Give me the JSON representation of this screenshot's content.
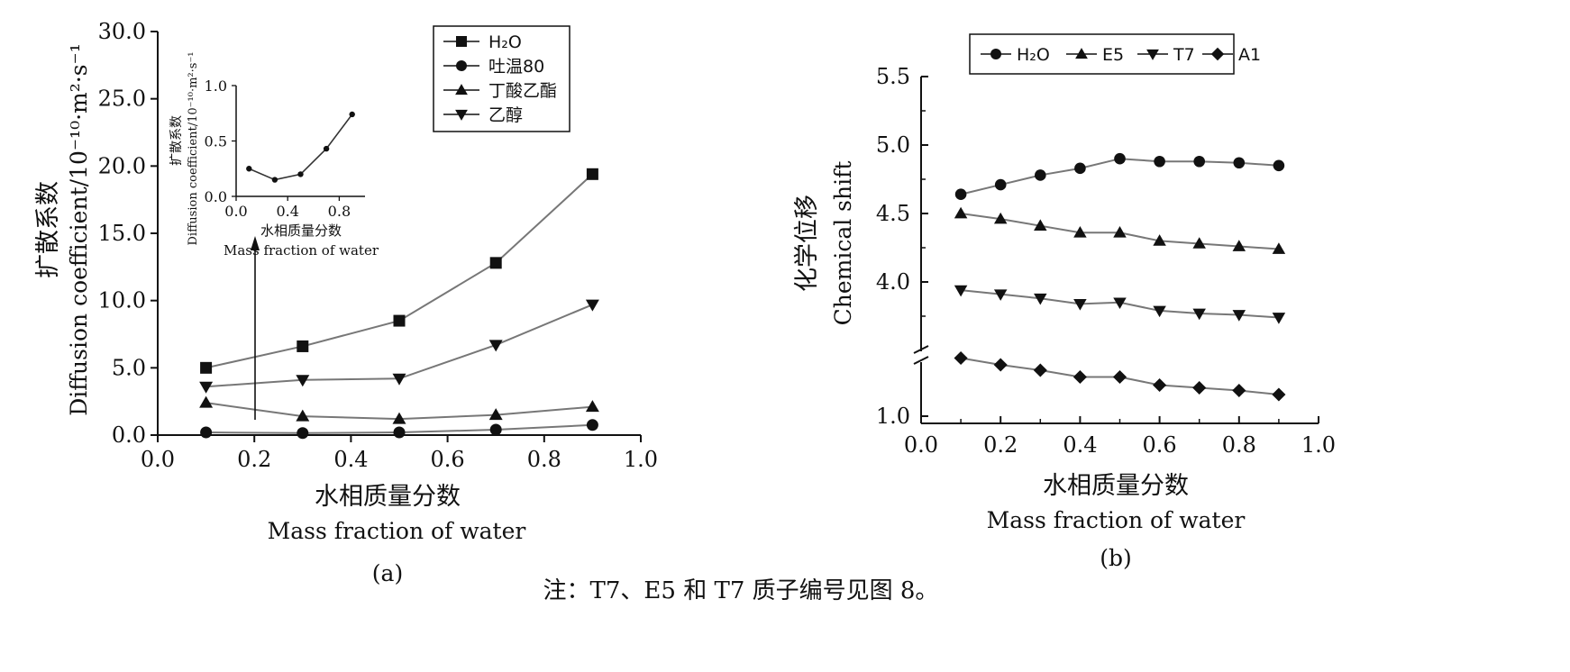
{
  "chart_data": [
    {
      "panel": "(a)",
      "type": "line",
      "xlabel_cn": "水相质量分数",
      "xlabel_en": "Mass fraction of water",
      "ylabel_cn": "扩散系数",
      "ylabel_en": "Diffusion coefficient/10⁻¹⁰·m²·s⁻¹",
      "xlim": [
        0,
        1.0
      ],
      "ylim": [
        0,
        30
      ],
      "xticks": [
        "0.0",
        "0.2",
        "0.4",
        "0.6",
        "0.8",
        "1.0"
      ],
      "yticks": [
        "0.0",
        "5.0",
        "10.0",
        "15.0",
        "20.0",
        "25.0",
        "30.0"
      ],
      "x": [
        0.1,
        0.3,
        0.5,
        0.7,
        0.9
      ],
      "series": [
        {
          "name": "H₂O",
          "marker": "square",
          "values": [
            5.0,
            6.6,
            8.5,
            12.8,
            19.4
          ]
        },
        {
          "name": "吐温80",
          "marker": "circle",
          "values": [
            0.2,
            0.15,
            0.2,
            0.4,
            0.75
          ]
        },
        {
          "name": "丁酸乙酯",
          "marker": "triangle-up",
          "values": [
            2.4,
            1.4,
            1.2,
            1.5,
            2.1
          ]
        },
        {
          "name": "乙醇",
          "marker": "triangle-down",
          "values": [
            3.6,
            4.1,
            4.2,
            6.7,
            9.7
          ]
        }
      ],
      "inset": {
        "xlabel_cn": "水相质量分数",
        "xlabel_en": "Mass fraction of water",
        "ylabel_cn": "扩散系数",
        "ylabel_en": "Diffusion coefficient/10⁻¹⁰·m²·s⁻¹",
        "xlim": [
          0,
          1.0
        ],
        "ylim": [
          0,
          1.0
        ],
        "xticks": [
          "0.0",
          "0.4",
          "0.8"
        ],
        "yticks": [
          "0.0",
          "0.5",
          "1.0"
        ],
        "x": [
          0.1,
          0.3,
          0.5,
          0.7,
          0.9
        ],
        "values": [
          0.25,
          0.15,
          0.2,
          0.43,
          0.74
        ]
      }
    },
    {
      "panel": "(b)",
      "type": "line",
      "xlabel_cn": "水相质量分数",
      "xlabel_en": "Mass fraction of water",
      "ylabel_cn": "化学位移",
      "ylabel_en": "Chemical shift",
      "xlim": [
        0,
        1.0
      ],
      "xticks": [
        "0.0",
        "0.2",
        "0.4",
        "0.6",
        "0.8",
        "1.0"
      ],
      "yticks_upper": [
        "4.0",
        "4.5",
        "5.0",
        "5.5"
      ],
      "ytick_lower": "1.0",
      "axis_break": true,
      "x": [
        0.1,
        0.2,
        0.3,
        0.4,
        0.5,
        0.6,
        0.7,
        0.8,
        0.9
      ],
      "series": [
        {
          "name": "H₂O",
          "marker": "circle",
          "values": [
            4.64,
            4.71,
            4.78,
            4.83,
            4.9,
            4.88,
            4.88,
            4.87,
            4.85
          ]
        },
        {
          "name": "E5",
          "marker": "triangle-up",
          "values": [
            4.5,
            4.46,
            4.41,
            4.36,
            4.36,
            4.3,
            4.28,
            4.26,
            4.24
          ]
        },
        {
          "name": "T7",
          "marker": "triangle-down",
          "values": [
            3.94,
            3.91,
            3.88,
            3.84,
            3.85,
            3.79,
            3.77,
            3.76,
            3.74
          ]
        },
        {
          "name": "A1",
          "marker": "diamond",
          "values": [
            1.43,
            1.38,
            1.34,
            1.29,
            1.29,
            1.23,
            1.21,
            1.19,
            1.16
          ]
        }
      ]
    }
  ],
  "caption": "注：T7、E5 和 T7 质子编号见图 8。"
}
